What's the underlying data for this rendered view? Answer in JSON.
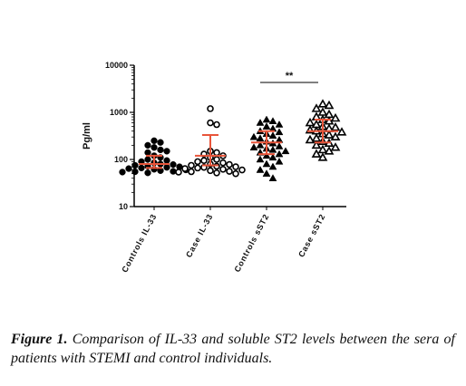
{
  "chart_data": {
    "type": "scatter",
    "y_label": "Pg/ml",
    "log_y": true,
    "ylim": [
      10,
      10000
    ],
    "yticks": [
      10,
      100,
      1000,
      10000
    ],
    "categories": [
      "Controls IL-33",
      "Case IL-33",
      "Controls sST2",
      "Case sST2"
    ],
    "markers": [
      "filled-circle",
      "open-circle",
      "filled-triangle",
      "open-triangle"
    ],
    "color": "#000000",
    "error_color": "#e8553a",
    "groups": [
      {
        "values": [
          250,
          230,
          200,
          180,
          160,
          150,
          140,
          120,
          110,
          100,
          95,
          90,
          85,
          80,
          78,
          75,
          72,
          70,
          68,
          66,
          64,
          62,
          60,
          58,
          56,
          55,
          54,
          52
        ],
        "mean": 80,
        "error_low": 66,
        "error_high": 120
      },
      {
        "values": [
          1200,
          600,
          550,
          150,
          140,
          130,
          120,
          110,
          100,
          95,
          90,
          85,
          80,
          78,
          75,
          72,
          70,
          68,
          66,
          64,
          62,
          60,
          58,
          56,
          55,
          54,
          52,
          50
        ],
        "mean": 120,
        "error_low": 75,
        "error_high": 330
      },
      {
        "values": [
          700,
          650,
          600,
          550,
          500,
          450,
          400,
          380,
          350,
          320,
          300,
          280,
          260,
          240,
          220,
          200,
          190,
          180,
          170,
          160,
          150,
          140,
          130,
          120,
          110,
          100,
          90,
          80,
          70,
          60,
          50,
          40
        ],
        "mean": 230,
        "error_low": 130,
        "error_high": 400
      },
      {
        "values": [
          1500,
          1400,
          1200,
          1000,
          900,
          800,
          750,
          700,
          650,
          600,
          550,
          500,
          480,
          450,
          420,
          400,
          380,
          350,
          330,
          300,
          280,
          260,
          240,
          220,
          200,
          180,
          160,
          150,
          130,
          110
        ],
        "mean": 400,
        "error_low": 230,
        "error_high": 700
      }
    ],
    "significance": {
      "from": 2,
      "to": 3,
      "label": "**"
    }
  },
  "caption": {
    "label": "Figure 1.",
    "text": "Comparison of IL-33 and soluble ST2 levels between the sera of patients with STEMI and control individuals."
  }
}
